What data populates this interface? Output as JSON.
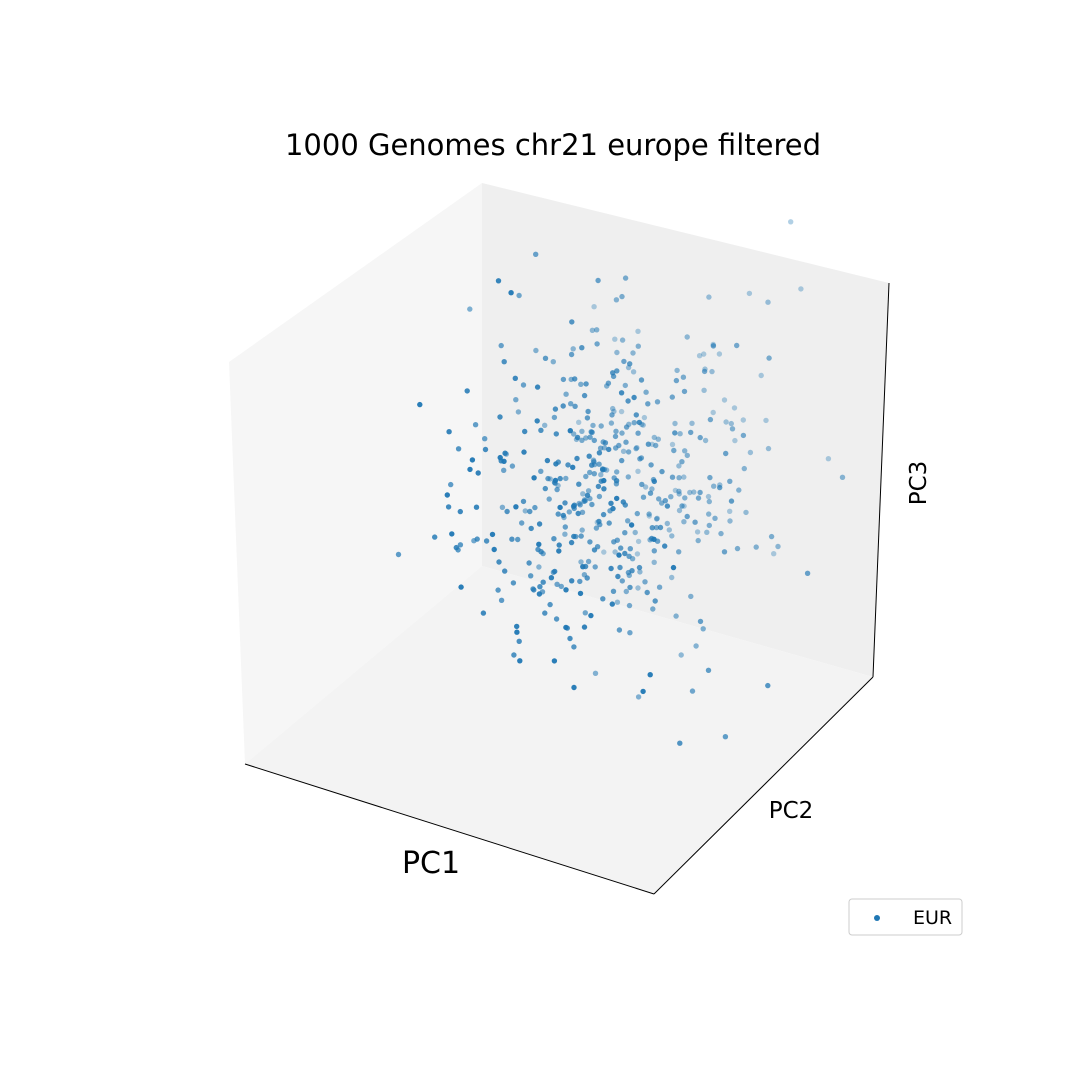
{
  "chart_data": {
    "type": "scatter",
    "projection": "3d",
    "title": "1000 Genomes chr21 europe filtered",
    "xlabel": "PC1",
    "ylabel": "PC2",
    "zlabel": "PC3",
    "ticks_shown": false,
    "grid": false,
    "legend_placement": "lower-right",
    "colors": {
      "series": "#1f77b4",
      "pane_left": "#f6f6f6",
      "pane_back": "#efefef",
      "pane_floor": "#f3f3f3",
      "axis_line": "#000000",
      "legend_border": "#cccccc"
    },
    "series": [
      {
        "name": "EUR",
        "marker": "point",
        "n_points": 500,
        "seed": 21
      }
    ]
  }
}
